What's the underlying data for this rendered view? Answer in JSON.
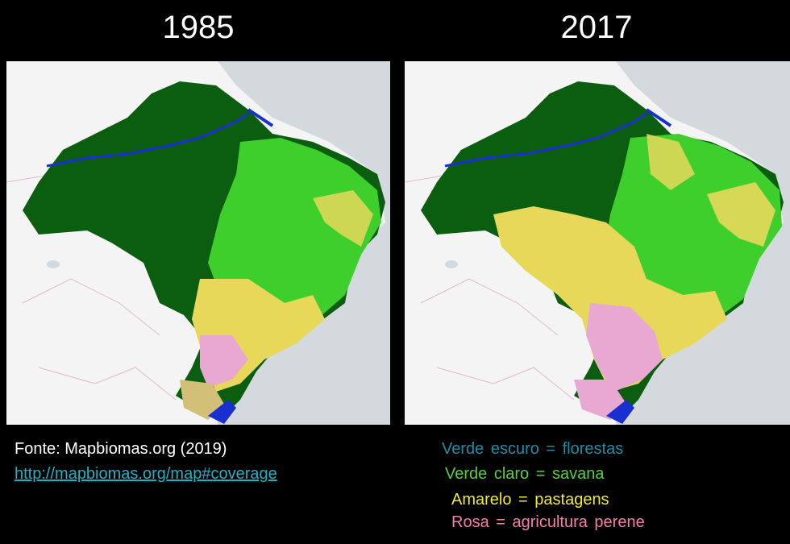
{
  "titles": {
    "left": "1985",
    "right": "2017"
  },
  "source": {
    "label": "Fonte: Mapbiomas.org (2019)",
    "link": "http://mapbiomas.org/map#coverage"
  },
  "legend": [
    {
      "text": "Verde escuro = florestas",
      "color": "#1b8fa6"
    },
    {
      "text": "Verde claro = savana",
      "color": "#58d03c"
    },
    {
      "text": "Amarelo = pastagens",
      "color": "#f2ea2c"
    },
    {
      "text": "Rosa = agricultura perene",
      "color": "#f27fb0"
    }
  ],
  "map_colors": {
    "forest": "#0b5e10",
    "savanna": "#3fcf2c",
    "pasture": "#e8d85a",
    "agriculture": "#e8a8d2",
    "water": "#1a2fd0",
    "ocean": "#d4d9dd",
    "land": "#f4f4f4"
  }
}
